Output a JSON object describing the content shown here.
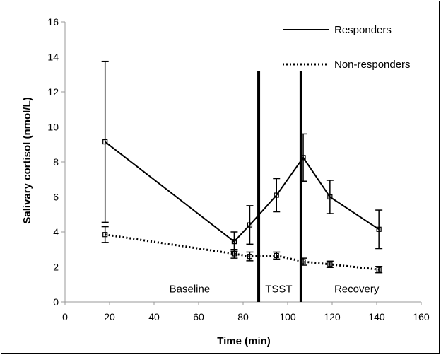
{
  "chart_data": {
    "type": "line",
    "title": "",
    "xlabel": "Time (min)",
    "ylabel": "Salivary cortisol (nmol/L)",
    "xlim": [
      0,
      160
    ],
    "ylim": [
      0,
      16
    ],
    "x_ticks": [
      0,
      20,
      40,
      60,
      80,
      100,
      120,
      140,
      160
    ],
    "y_ticks": [
      0,
      2,
      4,
      6,
      8,
      10,
      12,
      14,
      16
    ],
    "grid": false,
    "legend_position": "top-right",
    "series": [
      {
        "name": "Responders",
        "style": "solid",
        "color": "#000000",
        "points": [
          {
            "x": 18,
            "y": 9.15,
            "err": 4.6
          },
          {
            "x": 76,
            "y": 3.45,
            "err": 0.55
          },
          {
            "x": 83,
            "y": 4.4,
            "err": 1.1
          },
          {
            "x": 95,
            "y": 6.1,
            "err": 0.95
          },
          {
            "x": 107,
            "y": 8.25,
            "err": 1.35
          },
          {
            "x": 119,
            "y": 6.0,
            "err": 0.95
          },
          {
            "x": 141,
            "y": 4.15,
            "err": 1.1
          }
        ]
      },
      {
        "name": "Non-responders",
        "style": "dotted",
        "color": "#000000",
        "points": [
          {
            "x": 18,
            "y": 3.85,
            "err": 0.45
          },
          {
            "x": 76,
            "y": 2.75,
            "err": 0.25
          },
          {
            "x": 83,
            "y": 2.6,
            "err": 0.25
          },
          {
            "x": 95,
            "y": 2.65,
            "err": 0.2
          },
          {
            "x": 107,
            "y": 2.3,
            "err": 0.2
          },
          {
            "x": 119,
            "y": 2.15,
            "err": 0.18
          },
          {
            "x": 141,
            "y": 1.85,
            "err": 0.18
          }
        ]
      }
    ],
    "vertical_lines": [
      87,
      106
    ],
    "annotations": [
      {
        "text": "Baseline",
        "x": 56,
        "y": 0.75
      },
      {
        "text": "TSST",
        "x": 96,
        "y": 0.75
      },
      {
        "text": "Recovery",
        "x": 131,
        "y": 0.75
      }
    ]
  }
}
